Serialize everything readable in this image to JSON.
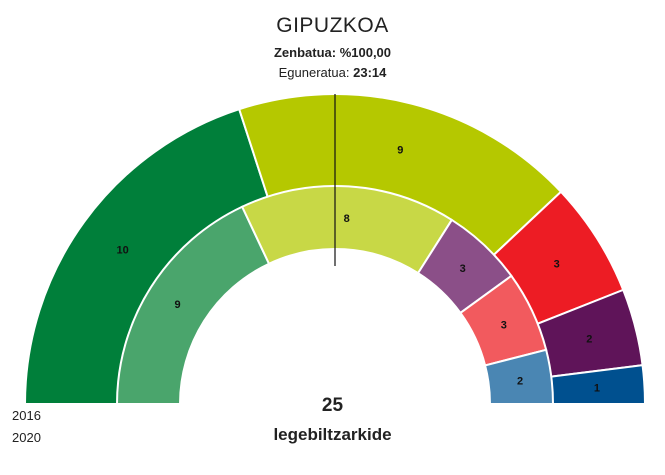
{
  "header": {
    "title": "GIPUZKOA",
    "counted": "Zenbatua: %100,00",
    "updated_label": "Eguneratua:",
    "updated_time": "23:14"
  },
  "chart_data": {
    "type": "parliament-donut",
    "total_seats": 25,
    "majority_line": true,
    "total_label": "25",
    "seats_label": "legebiltzarkide",
    "rings": [
      {
        "year": "2016",
        "position": "outer",
        "series": [
          {
            "seats": 10,
            "color": "#007f3a"
          },
          {
            "seats": 9,
            "color": "#b5c800"
          },
          {
            "seats": 3,
            "color": "#ed1c24"
          },
          {
            "seats": 2,
            "color": "#5f1459"
          },
          {
            "seats": 1,
            "color": "#00508f"
          }
        ]
      },
      {
        "year": "2020",
        "position": "inner",
        "series": [
          {
            "seats": 9,
            "color": "#4aa56c"
          },
          {
            "seats": 8,
            "color": "#c8d846"
          },
          {
            "seats": 3,
            "color": "#8b4f88"
          },
          {
            "seats": 3,
            "color": "#f25a5e"
          },
          {
            "seats": 2,
            "color": "#4a86b3"
          }
        ]
      }
    ]
  }
}
